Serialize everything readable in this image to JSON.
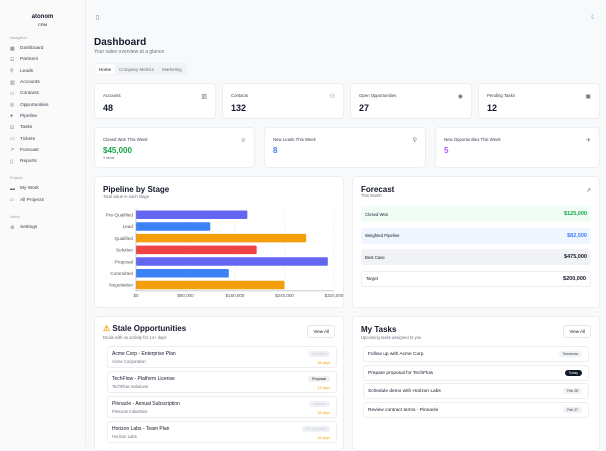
{
  "sidebar": {
    "logo": "atonom",
    "logo_sub": "CRM",
    "groups": [
      {
        "title": "Navigation",
        "items": [
          {
            "label": "Dashboard",
            "icon": "grid-icon"
          },
          {
            "label": "Partners",
            "icon": "handshake-icon"
          },
          {
            "label": "Leads",
            "icon": "user-plus-icon"
          },
          {
            "label": "Accounts",
            "icon": "building-icon"
          },
          {
            "label": "Contacts",
            "icon": "users-icon"
          },
          {
            "label": "Opportunities",
            "icon": "target-icon"
          },
          {
            "label": "Pipeline",
            "icon": "pipeline-icon"
          },
          {
            "label": "Tasks",
            "icon": "check-square-icon"
          },
          {
            "label": "Tickets",
            "icon": "ticket-icon"
          },
          {
            "label": "Forecast",
            "icon": "trending-up-icon"
          },
          {
            "label": "Reports",
            "icon": "file-icon"
          }
        ]
      },
      {
        "title": "Projects",
        "items": [
          {
            "label": "My Work",
            "icon": "briefcase-icon"
          },
          {
            "label": "All Projects",
            "icon": "folder-icon"
          }
        ]
      },
      {
        "title": "Admin",
        "items": [
          {
            "label": "Settings",
            "icon": "gear-icon"
          }
        ]
      }
    ]
  },
  "header": {
    "title": "Dashboard",
    "subtitle": "Your sales overview at a glance",
    "tabs": [
      "Home",
      "Company Metrics",
      "Marketing"
    ],
    "active_tab": "Home"
  },
  "stats": [
    {
      "label": "Accounts",
      "value": "48"
    },
    {
      "label": "Contacts",
      "value": "132"
    },
    {
      "label": "Open Opportunities",
      "value": "27"
    },
    {
      "label": "Pending Tasks",
      "value": "12"
    }
  ],
  "weekly": [
    {
      "label": "Closed Won This Week",
      "value": "$45,000",
      "note": "3 deals",
      "color": "#16a34a"
    },
    {
      "label": "New Leads This Week",
      "value": "8",
      "color": "#3b82f6"
    },
    {
      "label": "New Opportunities This Week",
      "value": "5",
      "color": "#a855f7"
    }
  ],
  "chart_data": {
    "type": "bar",
    "orientation": "horizontal",
    "title": "Pipeline by Stage",
    "subtitle": "Total value in each stage",
    "categories": [
      "Pre-Qualified",
      "Lead",
      "Qualified",
      "Solution",
      "Proposal",
      "Committed",
      "Negotiation"
    ],
    "values": [
      180000,
      120000,
      275000,
      195000,
      310000,
      150000,
      240000
    ],
    "colors": [
      "#6366f1",
      "#3b82f6",
      "#f59e0b",
      "#ef4444",
      "#6366f1",
      "#3b82f6",
      "#f59e0b"
    ],
    "xlim": [
      0,
      320000
    ],
    "xticks": [
      "$0",
      "$80,000",
      "$160,000",
      "$240,000",
      "$320,000"
    ],
    "grid": true
  },
  "forecast": {
    "title": "Forecast",
    "subtitle": "This Month",
    "rows": [
      {
        "label": "Closed Won",
        "value": "$125,000",
        "bg": "#f0fdf4",
        "color": "#16a34a"
      },
      {
        "label": "Weighted Pipeline",
        "value": "$82,500",
        "bg": "#eff6ff",
        "color": "#3b82f6"
      },
      {
        "label": "Best Case",
        "value": "$475,000",
        "bg": "#f1f3f7",
        "color": "#111827"
      },
      {
        "label": "Target",
        "value": "$200,000",
        "bg": "#ffffff",
        "color": "#111827"
      }
    ]
  },
  "stale": {
    "title": "Stale Opportunities",
    "subtitle": "Deals with no activity for 14+ days",
    "view_all": "View All",
    "items": [
      {
        "name": "Acme Corp - Enterprise Plan",
        "company": "Acme Corporation",
        "stage": "Qualified",
        "days": "28 days"
      },
      {
        "name": "TechFlow - Platform License",
        "company": "TechFlow Solutions",
        "stage": "Proposal",
        "days": "21 days"
      },
      {
        "name": "Pinnacle - Annual Subscription",
        "company": "Pinnacle Industries",
        "stage": "Solution",
        "days": "18 days"
      },
      {
        "name": "Horizon Labs - Team Plan",
        "company": "Horizon Labs",
        "stage": "Pre-Qualified",
        "days": "16 days"
      }
    ]
  },
  "tasks": {
    "title": "My Tasks",
    "subtitle": "Upcoming tasks assigned to you",
    "view_all": "View All",
    "items": [
      {
        "name": "Follow up with Acme Corp",
        "due": "Tomorrow"
      },
      {
        "name": "Prepare proposal for TechFlow",
        "due": "Today"
      },
      {
        "name": "Schedule demo with Horizon Labs",
        "due": "Feb 25"
      },
      {
        "name": "Review contract terms - Pinnacle",
        "due": "Feb 27"
      }
    ]
  }
}
